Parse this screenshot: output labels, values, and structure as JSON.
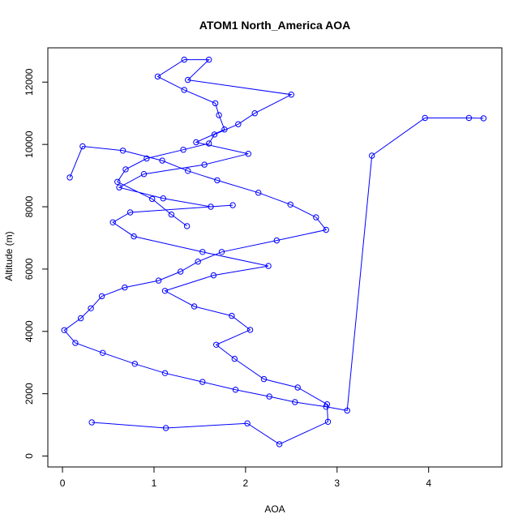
{
  "chart_data": {
    "type": "line",
    "title": "ATOM1 North_America AOA",
    "xlabel": "AOA",
    "ylabel": "Altitude (m)",
    "xlim": [
      -0.16,
      4.8
    ],
    "ylim": [
      -350,
      13100
    ],
    "xticks": [
      0,
      1,
      2,
      3,
      4
    ],
    "yticks": [
      0,
      2000,
      4000,
      6000,
      8000,
      10000,
      12000
    ],
    "grid": false,
    "markers": "open-circle",
    "colors": {
      "series": "#0000ff",
      "axes": "#000000"
    },
    "series": [
      {
        "x": [
          0.32,
          1.13,
          2.02,
          2.37,
          2.9,
          2.89,
          2.57,
          2.2,
          1.88,
          1.68,
          2.05,
          1.85,
          1.44,
          1.12,
          1.65,
          2.25,
          1.53,
          0.78,
          0.55,
          0.74,
          1.86,
          1.62,
          1.1,
          0.62,
          0.89,
          1.55,
          2.03,
          1.46,
          1.77,
          1.71,
          1.67,
          1.33,
          1.04,
          1.33,
          1.6,
          1.37,
          2.5,
          2.1,
          1.92,
          1.66,
          1.6,
          1.32,
          0.92,
          0.69,
          0.6,
          0.98,
          1.19,
          1.36
        ],
        "y": [
          1080,
          900,
          1050,
          380,
          1100,
          1660,
          2200,
          2470,
          3120,
          3570,
          4050,
          4500,
          4800,
          5300,
          5800,
          6100,
          6550,
          7050,
          7500,
          7820,
          8050,
          8000,
          8270,
          8620,
          9050,
          9350,
          9700,
          10070,
          10480,
          10940,
          11320,
          11750,
          12180,
          12720,
          12720,
          12070,
          11600,
          11000,
          10650,
          10320,
          10030,
          9830,
          9550,
          9200,
          8800,
          8250,
          7750,
          7380
        ]
      },
      {
        "x": [
          0.08,
          0.22,
          0.66,
          1.09,
          1.37,
          1.69,
          2.14,
          2.49,
          2.77,
          2.88,
          2.34,
          1.74,
          1.48,
          1.29,
          1.05,
          0.68,
          0.43,
          0.31,
          0.2,
          0.02,
          0.14,
          0.44,
          0.79,
          1.12,
          1.53,
          1.89,
          2.26,
          2.54,
          2.88,
          3.11,
          3.38,
          3.96,
          4.44,
          4.6
        ],
        "y": [
          8940,
          9940,
          9800,
          9480,
          9150,
          8850,
          8450,
          8070,
          7660,
          7260,
          6920,
          6550,
          6240,
          5920,
          5630,
          5410,
          5130,
          4740,
          4420,
          4040,
          3630,
          3310,
          2960,
          2660,
          2380,
          2130,
          1910,
          1730,
          1580,
          1460,
          9640,
          10850,
          10850,
          10840
        ]
      }
    ]
  }
}
